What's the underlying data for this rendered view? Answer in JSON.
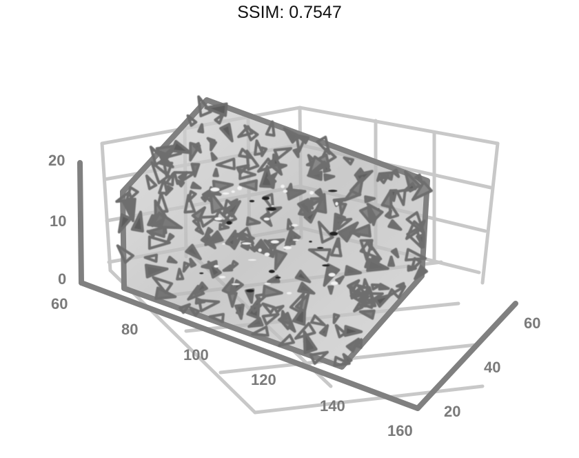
{
  "title": "SSIM: 0.7547",
  "chart_data": {
    "type": "volume",
    "description_type": "3d-cone-field",
    "title": "SSIM: 0.7547",
    "grid": true,
    "z_axis": {
      "ticks": [
        "20",
        "10",
        "0"
      ],
      "range": [
        0,
        20
      ]
    },
    "x_axis": {
      "ticks": [
        "60",
        "80",
        "100",
        "120",
        "140",
        "160"
      ],
      "range": [
        60,
        160
      ]
    },
    "y_axis": {
      "ticks": [
        "20",
        "40",
        "60"
      ],
      "range": [
        20,
        60
      ]
    },
    "colors": {
      "box": "#808080",
      "grid": "#c4c4c4",
      "fill": "#bdbdbd",
      "cone": "#6e6e6e"
    }
  }
}
